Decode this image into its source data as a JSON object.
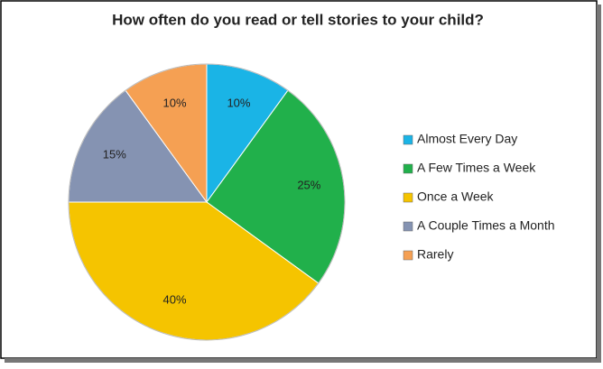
{
  "chart_data": {
    "type": "pie",
    "title": "How often do you read or tell stories to your child?",
    "categories": [
      "Almost Every Day",
      "A Few Times a Week",
      "Once a Week",
      "A Couple Times a Month",
      "Rarely"
    ],
    "values": [
      10,
      25,
      40,
      15,
      10
    ],
    "value_labels": [
      "10%",
      "25%",
      "40%",
      "15%",
      "10%"
    ],
    "colors": [
      "#1ab4e6",
      "#21b04b",
      "#f5c400",
      "#8593b2",
      "#f5a053"
    ],
    "legend": "right"
  }
}
